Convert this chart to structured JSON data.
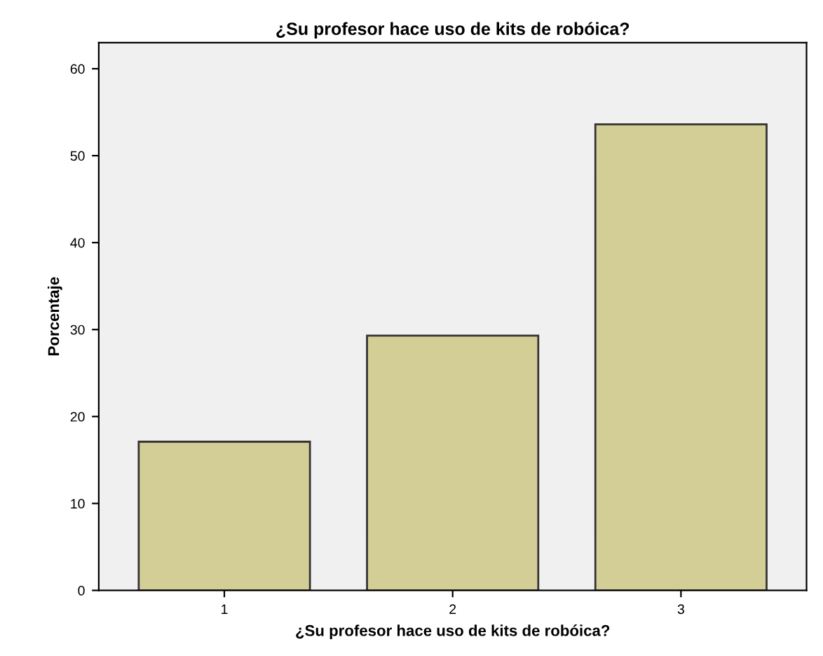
{
  "chart_data": {
    "type": "bar",
    "title": "¿Su profesor hace uso de kits de robóica?",
    "xlabel": "¿Su profesor hace uso de kits de robóica?",
    "ylabel": "Porcentaje",
    "categories": [
      "1",
      "2",
      "3"
    ],
    "values": [
      17.1,
      29.3,
      53.6
    ],
    "color": "#d3ce96",
    "ylim": [
      0,
      63
    ],
    "yticks": [
      0,
      10,
      20,
      30,
      40,
      50,
      60
    ],
    "grid": false
  }
}
